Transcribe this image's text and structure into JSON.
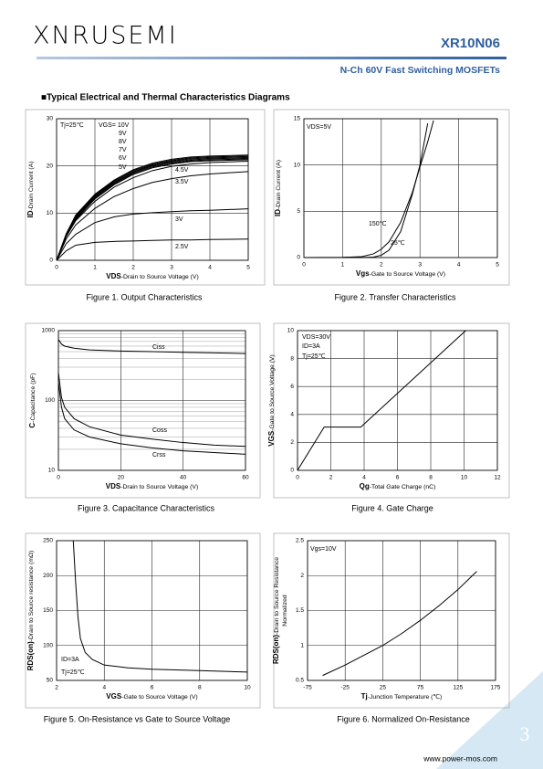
{
  "header": {
    "logo": "XNRUSEMI",
    "part_number": "XR10N06",
    "subtitle": "N-Ch   60V Fast Switching MOSFETs"
  },
  "section_title": "■Typical Electrical and Thermal Characteristics Diagrams",
  "chart_data": [
    {
      "type": "line",
      "caption": "Figure 1.  Output Characteristics",
      "xlabel_symbol": "VDS",
      "xlabel": "-Drain to Source Voltage (V)",
      "ylabel_symbol": "ID",
      "ylabel": "-Drain Current (A)",
      "annotations": [
        "Tj=25℃"
      ],
      "xlim": [
        0,
        5
      ],
      "ylim": [
        0,
        30
      ],
      "xticks": [
        0,
        1,
        2,
        3,
        4,
        5
      ],
      "yticks": [
        0,
        10,
        20,
        30
      ],
      "grid": true,
      "color": "#000000",
      "x": [
        0,
        0.25,
        0.5,
        1,
        1.5,
        2,
        2.5,
        3,
        3.5,
        4,
        5
      ],
      "series": [
        {
          "name": "VGS= 10V",
          "values": [
            0,
            5.6,
            9.6,
            14,
            17,
            19.2,
            20.6,
            21.4,
            21.9,
            22.1,
            22.3
          ]
        },
        {
          "name": "9V",
          "values": [
            0,
            5.5,
            9.4,
            13.8,
            16.8,
            19,
            20.4,
            21.2,
            21.7,
            21.9,
            22.1
          ]
        },
        {
          "name": "8V",
          "values": [
            0,
            5.4,
            9.2,
            13.6,
            16.6,
            18.8,
            20.2,
            21,
            21.5,
            21.7,
            21.9
          ]
        },
        {
          "name": "7V",
          "values": [
            0,
            5.3,
            9,
            13.4,
            16.4,
            18.6,
            20,
            20.8,
            21.3,
            21.5,
            21.7
          ]
        },
        {
          "name": "6V",
          "values": [
            0,
            5.2,
            8.8,
            13.2,
            16.2,
            18.4,
            19.8,
            20.6,
            21.1,
            21.3,
            21.5
          ]
        },
        {
          "name": "5V",
          "values": [
            0,
            5.1,
            8.6,
            13,
            16,
            18.2,
            19.6,
            20.4,
            20.9,
            21.1,
            21.3
          ]
        },
        {
          "name": "4.5V",
          "values": [
            0,
            5,
            8.4,
            12.5,
            15.5,
            17.5,
            19,
            19.9,
            20.4,
            20.7,
            21
          ]
        },
        {
          "name": "3.5V",
          "values": [
            0,
            4.5,
            7.5,
            11,
            13.5,
            15.2,
            16.5,
            17.3,
            17.9,
            18.3,
            18.8
          ]
        },
        {
          "name": "3V",
          "values": [
            0,
            3.5,
            5.5,
            8,
            9.2,
            9.8,
            10.1,
            10.3,
            10.5,
            10.6,
            10.9
          ]
        },
        {
          "name": "2.5V",
          "values": [
            0,
            2,
            3.2,
            3.8,
            4,
            4.1,
            4.2,
            4.3,
            4.3,
            4.4,
            4.5
          ]
        }
      ]
    },
    {
      "type": "line",
      "caption": "Figure 2.  Transfer Characteristics",
      "xlabel_symbol": "Vgs",
      "xlabel": "-Gate to Source Voltage (V)",
      "ylabel_symbol": "ID",
      "ylabel": "-Drain Current (A)",
      "annotations": [
        "VDS=5V"
      ],
      "xlim": [
        0,
        5
      ],
      "ylim": [
        0,
        15
      ],
      "xticks": [
        0,
        1,
        2,
        3,
        4,
        5
      ],
      "yticks": [
        0,
        5,
        10,
        15
      ],
      "grid": true,
      "color": "#000000",
      "x": [
        0,
        1,
        1.5,
        1.8,
        2,
        2.2,
        2.5,
        2.8,
        3,
        3.2,
        3.35
      ],
      "series": [
        {
          "name": "150℃",
          "values": [
            0,
            0.02,
            0.1,
            0.4,
            0.9,
            1.7,
            3.8,
            7,
            9.8,
            12.5,
            14.8
          ]
        },
        {
          "name": "25℃",
          "values": [
            0,
            0,
            0,
            0.05,
            0.25,
            0.8,
            2.8,
            6.8,
            10,
            14.5,
            null
          ]
        }
      ]
    },
    {
      "type": "line",
      "caption": "Figure 3.  Capacitance Characteristics",
      "xlabel_symbol": "VDS",
      "xlabel": "-Drain to Source Voltage (V)",
      "ylabel_symbol": "C",
      "ylabel": "-Capacitance (pF)",
      "annotations": [],
      "log_y": true,
      "xlim": [
        0,
        60
      ],
      "ylim": [
        10,
        1000
      ],
      "xticks": [
        0,
        20,
        40,
        60
      ],
      "yticks": [
        10,
        100,
        1000
      ],
      "grid": true,
      "color": "#000000",
      "x": [
        0,
        1,
        2,
        5,
        10,
        20,
        30,
        40,
        50,
        60
      ],
      "series": [
        {
          "name": "Ciss",
          "values": [
            750,
            640,
            600,
            560,
            530,
            510,
            500,
            490,
            480,
            470
          ]
        },
        {
          "name": "Coss",
          "values": [
            250,
            110,
            80,
            55,
            42,
            32,
            28,
            25,
            23,
            22
          ]
        },
        {
          "name": "Crss",
          "values": [
            180,
            80,
            55,
            38,
            30,
            24,
            21,
            19,
            18,
            17
          ]
        }
      ]
    },
    {
      "type": "line",
      "caption": "Figure 4.  Gate Charge",
      "xlabel_symbol": "Qg",
      "xlabel": "-Total Gate Charge (nC)",
      "ylabel_symbol": "VGS",
      "ylabel": "-Gate to Source Voltage (V)",
      "annotations": [
        "VDS=30V",
        "ID=3A",
        "Tj=25℃"
      ],
      "xlim": [
        0,
        12
      ],
      "ylim": [
        0,
        10
      ],
      "xticks": [
        0,
        2,
        4,
        6,
        8,
        10,
        12
      ],
      "yticks": [
        0,
        2,
        4,
        6,
        8,
        10
      ],
      "grid": true,
      "color": "#000000",
      "x": [
        0,
        1.6,
        3.8,
        10.1
      ],
      "series": [
        {
          "name": null,
          "values": [
            0,
            3.1,
            3.1,
            10
          ]
        }
      ]
    },
    {
      "type": "line",
      "caption": "Figure 5.  On-Resistance vs Gate to Source Voltage",
      "xlabel_symbol": "VGS",
      "xlabel": "-Gate to Source Voltage (V)",
      "ylabel_symbol": "RDS(on)",
      "ylabel": "-Drain to Source resistance (mΩ)",
      "annotations": [
        "ID=3A",
        "Tj=25℃"
      ],
      "xlim": [
        2,
        10
      ],
      "ylim": [
        50,
        250
      ],
      "xticks": [
        2,
        4,
        6,
        8,
        10
      ],
      "yticks": [
        50,
        100,
        150,
        200,
        250
      ],
      "grid": true,
      "color": "#000000",
      "x": [
        2.7,
        2.8,
        2.9,
        3,
        3.2,
        3.5,
        4,
        5,
        6,
        8,
        10
      ],
      "series": [
        {
          "name": null,
          "values": [
            250,
            190,
            140,
            110,
            90,
            80,
            72,
            68,
            66,
            64,
            62
          ]
        }
      ]
    },
    {
      "type": "line",
      "caption": "Figure 6.  Normalized On-Resistance",
      "xlabel_symbol": "Tj",
      "xlabel": "-Junction Temperature (℃)",
      "ylabel_symbol": "RDS(on)",
      "ylabel": "-Drain to Source Resistance",
      "ylabel_note": "Normalized",
      "annotations": [
        "Vgs=10V"
      ],
      "xlim": [
        -75,
        175
      ],
      "ylim": [
        0.5,
        2.5
      ],
      "xticks": [
        -75,
        -25,
        25,
        75,
        125,
        175
      ],
      "yticks": [
        0.5,
        1,
        1.5,
        2,
        2.5
      ],
      "grid": true,
      "color": "#000000",
      "x": [
        -55,
        -25,
        0,
        25,
        50,
        75,
        100,
        125,
        150
      ],
      "series": [
        {
          "name": null,
          "values": [
            0.57,
            0.72,
            0.86,
            1.0,
            1.17,
            1.36,
            1.57,
            1.8,
            2.06
          ]
        }
      ]
    }
  ],
  "footer": {
    "url": "www.power-mos.com",
    "page_number": "3"
  }
}
